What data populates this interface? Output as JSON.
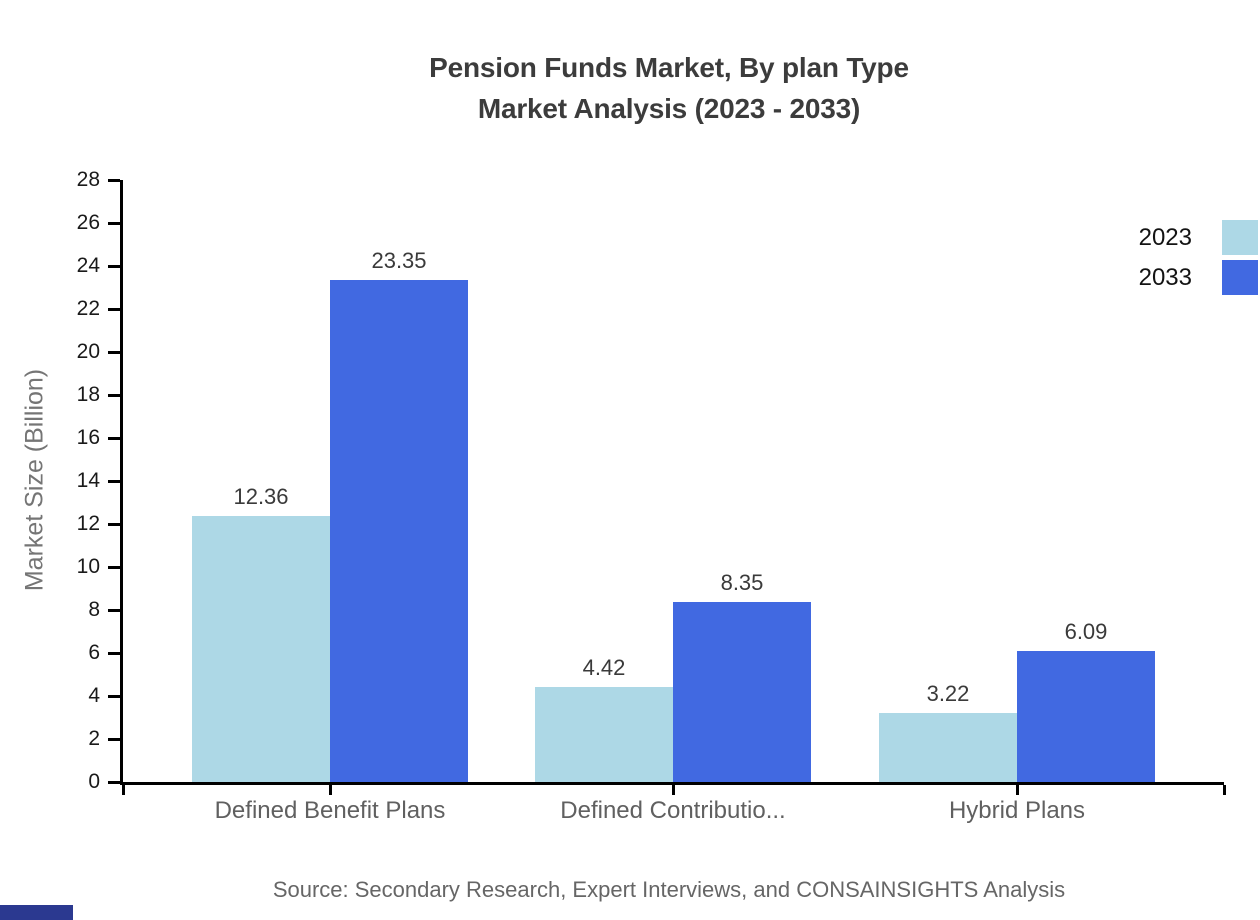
{
  "title": {
    "line1": "Pension Funds Market, By plan Type",
    "line2": "Market Analysis (2023 - 2033)"
  },
  "source_note": "Source: Secondary Research, Expert Interviews, and CONSAINSIGHTS Analysis",
  "chart_data": {
    "type": "bar",
    "title": "Pension Funds Market, By plan Type Market Analysis (2023 - 2033)",
    "categories": [
      "Defined Benefit Plans",
      "Defined Contributio...",
      "Hybrid Plans"
    ],
    "series": [
      {
        "name": "2023",
        "color": "#ADD8E6",
        "values": [
          12.36,
          4.42,
          3.22
        ]
      },
      {
        "name": "2033",
        "color": "#4169E1",
        "values": [
          23.35,
          8.35,
          6.09
        ]
      }
    ],
    "value_labels": [
      [
        "12.36",
        "4.42",
        "3.22"
      ],
      [
        "23.35",
        "8.35",
        "6.09"
      ]
    ],
    "xlabel": "",
    "ylabel": "Market Size (Billion)",
    "ylim": [
      0,
      28
    ],
    "ytick_step": 2,
    "grid": false,
    "legend_position": "top-right"
  },
  "colors": {
    "series_2023": "#ADD8E6",
    "series_2033": "#4169E1",
    "title_text": "#3C3C3C",
    "axis": "#000000",
    "tick_label": "#1A1A1A",
    "category_label": "#606060",
    "axis_title": "#757575",
    "value_label": "#3A3A3A",
    "source_text": "#666666",
    "corner_mark": "#2B3990"
  }
}
